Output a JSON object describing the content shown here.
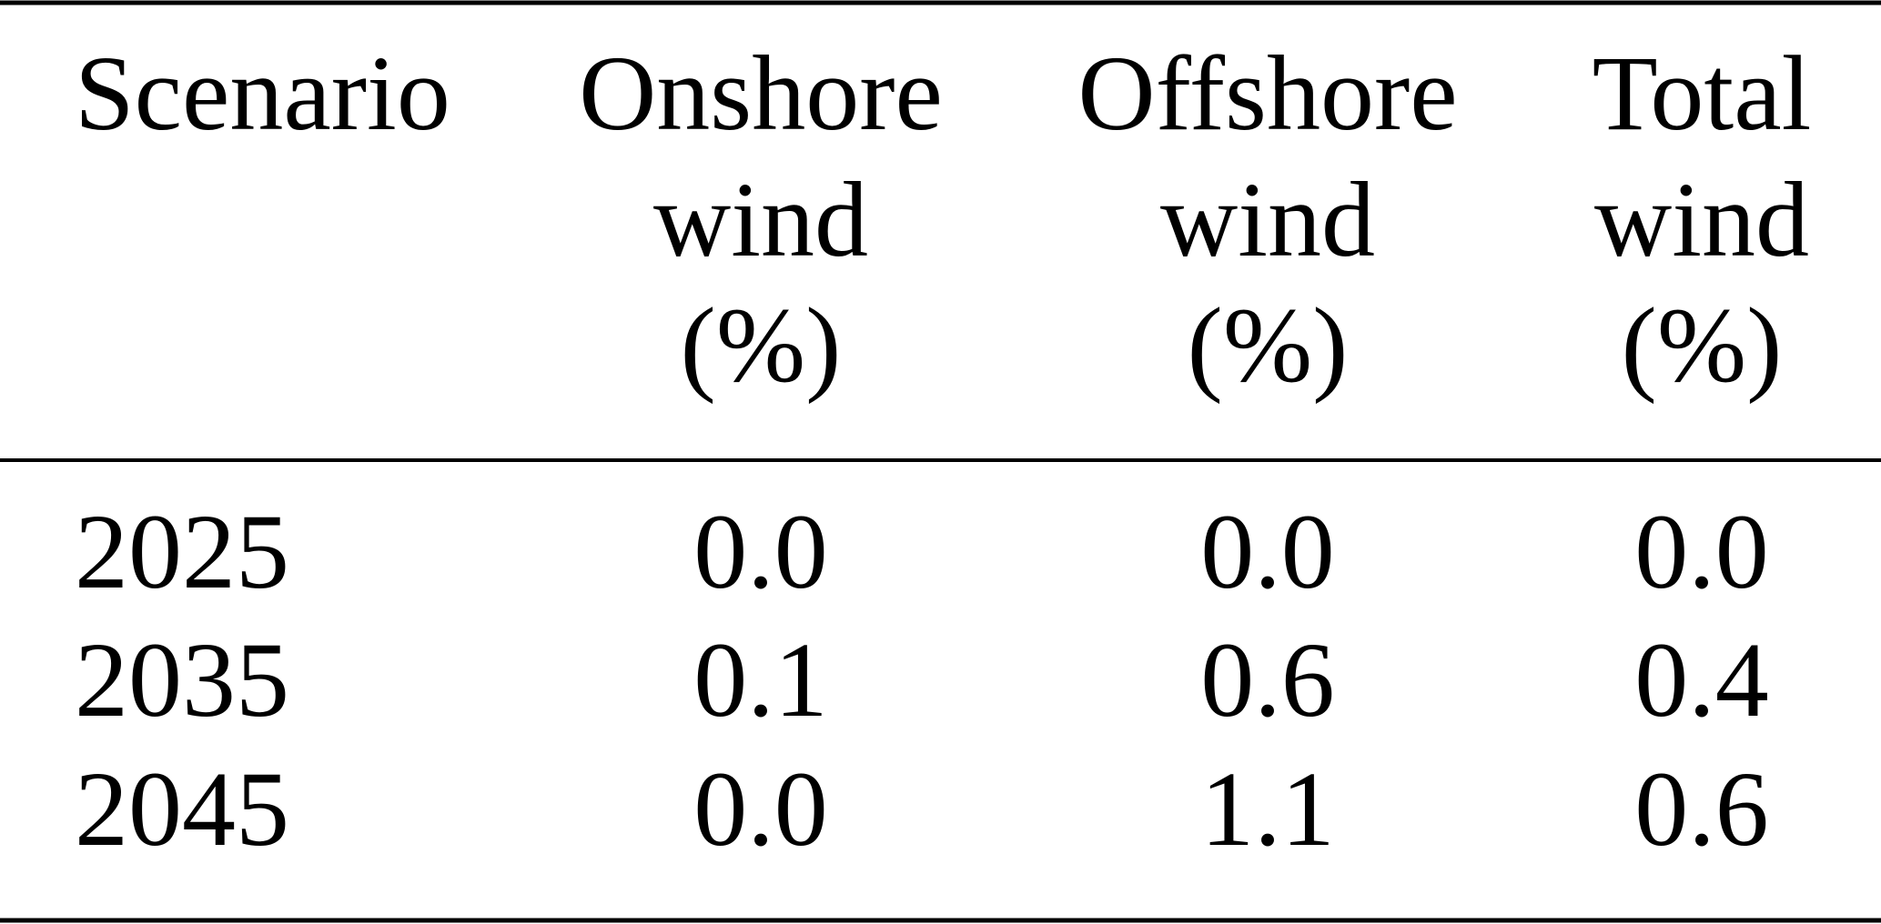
{
  "table": {
    "header": [
      [
        "Scenario"
      ],
      [
        "Onshore",
        "wind",
        "(%)"
      ],
      [
        "Offshore",
        "wind",
        "(%)"
      ],
      [
        "Total",
        "wind",
        "(%)"
      ]
    ],
    "rows": [
      [
        "2025",
        "0.0",
        "0.0",
        "0.0"
      ],
      [
        "2035",
        "0.1",
        "0.6",
        "0.4"
      ],
      [
        "2045",
        "0.0",
        "1.1",
        "0.6"
      ]
    ]
  }
}
